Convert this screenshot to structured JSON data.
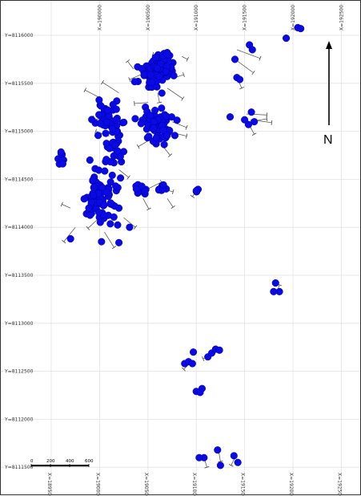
{
  "map": {
    "x_grid": [
      {
        "value": 189500,
        "top_label": "",
        "bottom_label": "X=189500"
      },
      {
        "value": 190000,
        "top_label": "X=190000",
        "bottom_label": "X=190000"
      },
      {
        "value": 190500,
        "top_label": "X=190500",
        "bottom_label": "X=190500"
      },
      {
        "value": 191000,
        "top_label": "X=191000",
        "bottom_label": "X=191000"
      },
      {
        "value": 191500,
        "top_label": "X=191500",
        "bottom_label": "X=191500"
      },
      {
        "value": 192000,
        "top_label": "X=192000",
        "bottom_label": "X=192000"
      },
      {
        "value": 192500,
        "top_label": "X=192500",
        "bottom_label": "X=192500"
      }
    ],
    "y_grid": [
      {
        "value": 8116000,
        "label": "Y=8116000"
      },
      {
        "value": 8115500,
        "label": "Y=8115500"
      },
      {
        "value": 8115000,
        "label": "Y=8115000"
      },
      {
        "value": 8114500,
        "label": "Y=8114500"
      },
      {
        "value": 8114000,
        "label": "Y=8114000"
      },
      {
        "value": 8113500,
        "label": "Y=8113500"
      },
      {
        "value": 8113000,
        "label": "Y=8113000"
      },
      {
        "value": 8112500,
        "label": "Y=8112500"
      },
      {
        "value": 8112000,
        "label": "Y=8112000"
      },
      {
        "value": 8111500,
        "label": "Y=8111500"
      }
    ],
    "north_label": "N",
    "scale_bar": {
      "labels": [
        "0",
        "200",
        "400",
        "600"
      ],
      "unit_values": [
        0,
        200,
        400,
        600
      ]
    },
    "colors": {
      "point": "#0a0ae6",
      "point_stroke": "#00009a",
      "trace": "#444444",
      "grid": "#e2e2e2"
    },
    "clusters": [
      {
        "cx": 190600,
        "cy": 8115050,
        "sx": 110,
        "sy": 110,
        "n": 70
      },
      {
        "cx": 190550,
        "cy": 8115600,
        "sx": 90,
        "sy": 100,
        "n": 55
      },
      {
        "cx": 190680,
        "cy": 8115700,
        "sx": 70,
        "sy": 70,
        "n": 35
      },
      {
        "cx": 190100,
        "cy": 8115100,
        "sx": 90,
        "sy": 110,
        "n": 45
      },
      {
        "cx": 190150,
        "cy": 8114820,
        "sx": 70,
        "sy": 120,
        "n": 25
      },
      {
        "cx": 190000,
        "cy": 8114300,
        "sx": 110,
        "sy": 170,
        "n": 80
      },
      {
        "cx": 189600,
        "cy": 8114720,
        "sx": 25,
        "sy": 50,
        "n": 8
      },
      {
        "cx": 190420,
        "cy": 8114380,
        "sx": 40,
        "sy": 40,
        "n": 10
      },
      {
        "cx": 190650,
        "cy": 8114400,
        "sx": 50,
        "sy": 40,
        "n": 10
      },
      {
        "cx": 191000,
        "cy": 8114380,
        "sx": 15,
        "sy": 12,
        "n": 4
      }
    ],
    "points": [
      [
        191000,
        8114380
      ],
      [
        190310,
        8114000
      ],
      [
        190200,
        8114200
      ],
      [
        190380,
        8114400
      ],
      [
        189900,
        8114700
      ],
      [
        190700,
        8115800
      ],
      [
        191400,
        8115750
      ],
      [
        191550,
        8115900
      ],
      [
        191580,
        8115850
      ],
      [
        191420,
        8115560
      ],
      [
        191450,
        8115540
      ],
      [
        191350,
        8115150
      ],
      [
        191570,
        8115200
      ],
      [
        191500,
        8115120
      ],
      [
        191600,
        8115100
      ],
      [
        191540,
        8115070
      ],
      [
        191930,
        8115970
      ],
      [
        192050,
        8116080
      ],
      [
        192080,
        8116070
      ],
      [
        191820,
        8113420
      ],
      [
        191800,
        8113330
      ],
      [
        191860,
        8113330
      ],
      [
        190880,
        8112580
      ],
      [
        190920,
        8112600
      ],
      [
        190960,
        8112580
      ],
      [
        190970,
        8112700
      ],
      [
        191120,
        8112650
      ],
      [
        191160,
        8112690
      ],
      [
        191200,
        8112730
      ],
      [
        191240,
        8112720
      ],
      [
        191060,
        8112320
      ],
      [
        191000,
        8112290
      ],
      [
        191040,
        8112280
      ],
      [
        191080,
        8111600
      ],
      [
        191220,
        8111680
      ],
      [
        191250,
        8111520
      ],
      [
        191390,
        8111620
      ],
      [
        191430,
        8111550
      ],
      [
        191030,
        8111600
      ],
      [
        190020,
        8113850
      ],
      [
        189700,
        8113880
      ],
      [
        190200,
        8113840
      ]
    ],
    "traces": [
      {
        "x": 190350,
        "y": 8115650,
        "dx": -60,
        "dy": 80
      },
      {
        "x": 190450,
        "y": 8115600,
        "dx": -140,
        "dy": -60
      },
      {
        "x": 190700,
        "y": 8115450,
        "dx": 160,
        "dy": -110
      },
      {
        "x": 190750,
        "y": 8115550,
        "dx": 120,
        "dy": 40
      },
      {
        "x": 190600,
        "y": 8115400,
        "dx": 20,
        "dy": -100
      },
      {
        "x": 190500,
        "y": 8115300,
        "dx": -140,
        "dy": -10
      },
      {
        "x": 190200,
        "y": 8115400,
        "dx": -170,
        "dy": 110
      },
      {
        "x": 190000,
        "y": 8115350,
        "dx": -150,
        "dy": 80
      },
      {
        "x": 190050,
        "y": 8115100,
        "dx": -120,
        "dy": 40
      },
      {
        "x": 190100,
        "y": 8114950,
        "dx": -140,
        "dy": 50
      },
      {
        "x": 190700,
        "y": 8115000,
        "dx": 200,
        "dy": -50
      },
      {
        "x": 190750,
        "y": 8115100,
        "dx": 150,
        "dy": -60
      },
      {
        "x": 190650,
        "y": 8114850,
        "dx": 80,
        "dy": -100
      },
      {
        "x": 190500,
        "y": 8114900,
        "dx": -100,
        "dy": -60
      },
      {
        "x": 190200,
        "y": 8114600,
        "dx": 100,
        "dy": -80
      },
      {
        "x": 190000,
        "y": 8114100,
        "dx": -120,
        "dy": -110
      },
      {
        "x": 189750,
        "y": 8114000,
        "dx": -120,
        "dy": -150
      },
      {
        "x": 190050,
        "y": 8113950,
        "dx": 100,
        "dy": -160
      },
      {
        "x": 190250,
        "y": 8114100,
        "dx": 120,
        "dy": -100
      },
      {
        "x": 189700,
        "y": 8114200,
        "dx": -90,
        "dy": 40
      },
      {
        "x": 190500,
        "y": 8114400,
        "dx": 140,
        "dy": 70
      },
      {
        "x": 190650,
        "y": 8114400,
        "dx": 110,
        "dy": -30
      },
      {
        "x": 190700,
        "y": 8114300,
        "dx": 60,
        "dy": -90
      },
      {
        "x": 190450,
        "y": 8114300,
        "dx": 60,
        "dy": -110
      },
      {
        "x": 191420,
        "y": 8115850,
        "dx": 240,
        "dy": -90
      },
      {
        "x": 191400,
        "y": 8115750,
        "dx": 190,
        "dy": -140
      },
      {
        "x": 191430,
        "y": 8115540,
        "dx": 40,
        "dy": -90
      },
      {
        "x": 191560,
        "y": 8115100,
        "dx": 170,
        "dy": 30
      },
      {
        "x": 191540,
        "y": 8115080,
        "dx": 60,
        "dy": -110
      },
      {
        "x": 191520,
        "y": 8115180,
        "dx": 210,
        "dy": -10
      },
      {
        "x": 191560,
        "y": 8115120,
        "dx": 220,
        "dy": -30
      },
      {
        "x": 191000,
        "y": 8114380,
        "dx": -40,
        "dy": -60
      },
      {
        "x": 191180,
        "y": 8112680,
        "dx": -110,
        "dy": -50
      },
      {
        "x": 190930,
        "y": 8112580,
        "dx": -60,
        "dy": -60
      },
      {
        "x": 191080,
        "y": 8111600,
        "dx": 30,
        "dy": -100
      },
      {
        "x": 191230,
        "y": 8111680,
        "dx": 20,
        "dy": -120
      },
      {
        "x": 191400,
        "y": 8111600,
        "dx": -40,
        "dy": -80
      },
      {
        "x": 191840,
        "y": 8113340,
        "dx": 20,
        "dy": 60
      },
      {
        "x": 190700,
        "y": 8115750,
        "dx": -150,
        "dy": 50
      },
      {
        "x": 190850,
        "y": 8115780,
        "dx": 60,
        "dy": -30
      }
    ]
  }
}
